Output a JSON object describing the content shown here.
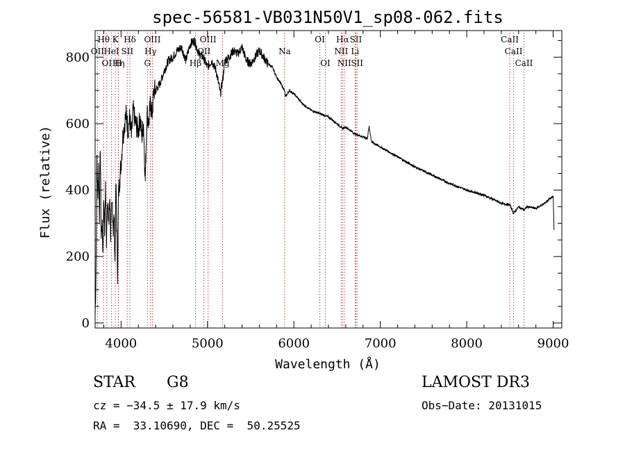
{
  "chart_data": {
    "type": "line",
    "title": "spec-56581-VB031N50V1_sp08-062.fits",
    "xlabel": "Wavelength (Å)",
    "ylabel": "Flux (relative)",
    "xlim": [
      3700,
      9100
    ],
    "ylim": [
      -15,
      880
    ],
    "xticks": [
      4000,
      5000,
      6000,
      7000,
      8000,
      9000
    ],
    "yticks": [
      0,
      200,
      400,
      600,
      800
    ],
    "series": [
      {
        "name": "spectrum",
        "x": [
          3700,
          3710,
          3720,
          3730,
          3740,
          3750,
          3760,
          3770,
          3780,
          3790,
          3800,
          3810,
          3820,
          3830,
          3840,
          3850,
          3860,
          3870,
          3880,
          3890,
          3900,
          3910,
          3920,
          3930,
          3940,
          3950,
          3960,
          3970,
          3980,
          3990,
          4000,
          4020,
          4040,
          4060,
          4080,
          4100,
          4120,
          4140,
          4160,
          4180,
          4200,
          4220,
          4240,
          4260,
          4280,
          4300,
          4320,
          4340,
          4360,
          4380,
          4400,
          4450,
          4500,
          4550,
          4600,
          4650,
          4700,
          4750,
          4800,
          4850,
          4900,
          4950,
          5000,
          5050,
          5100,
          5150,
          5180,
          5200,
          5250,
          5300,
          5350,
          5400,
          5450,
          5500,
          5550,
          5600,
          5650,
          5700,
          5750,
          5800,
          5850,
          5890,
          5900,
          5950,
          6000,
          6100,
          6200,
          6300,
          6400,
          6500,
          6563,
          6600,
          6700,
          6800,
          6850,
          6870,
          6900,
          7000,
          7200,
          7400,
          7600,
          7800,
          8000,
          8200,
          8400,
          8500,
          8542,
          8600,
          8662,
          8700,
          8800,
          8900,
          8950,
          9000,
          9010
        ],
        "y": [
          20,
          150,
          500,
          380,
          470,
          320,
          540,
          260,
          300,
          210,
          380,
          280,
          420,
          250,
          360,
          330,
          300,
          390,
          260,
          330,
          360,
          280,
          320,
          180,
          420,
          300,
          150,
          380,
          420,
          450,
          480,
          560,
          600,
          630,
          580,
          620,
          560,
          640,
          610,
          590,
          580,
          620,
          560,
          600,
          430,
          640,
          600,
          660,
          630,
          700,
          700,
          720,
          760,
          790,
          800,
          820,
          830,
          790,
          840,
          850,
          810,
          800,
          770,
          790,
          760,
          690,
          740,
          790,
          800,
          820,
          810,
          830,
          790,
          780,
          800,
          820,
          800,
          780,
          770,
          740,
          720,
          700,
          680,
          700,
          690,
          660,
          640,
          630,
          620,
          600,
          585,
          590,
          570,
          560,
          555,
          590,
          545,
          530,
          500,
          470,
          445,
          420,
          400,
          385,
          360,
          355,
          330,
          350,
          340,
          350,
          345,
          360,
          372,
          380,
          280
        ]
      }
    ],
    "lines": [
      {
        "name": "Hθ",
        "wavelength": 3798,
        "tier": 0
      },
      {
        "name": "K",
        "wavelength": 3934,
        "tier": 0
      },
      {
        "name": "Hδ",
        "wavelength": 4102,
        "tier": 0
      },
      {
        "name": "OIII",
        "wavelength": 4363,
        "tier": 0
      },
      {
        "name": "OIII",
        "wavelength": 5007,
        "tier": 0
      },
      {
        "name": "OII",
        "wavelength": 3727,
        "tier": 1
      },
      {
        "name": "HeI",
        "wavelength": 3889,
        "tier": 1
      },
      {
        "name": "SII",
        "wavelength": 4072,
        "tier": 1
      },
      {
        "name": "Hγ",
        "wavelength": 4341,
        "tier": 1
      },
      {
        "name": "OII",
        "wavelength": 4959,
        "tier": 1
      },
      {
        "name": "OI",
        "wavelength": 3835,
        "tier": 2
      },
      {
        "name": "Hη",
        "wavelength": 3970,
        "tier": 2
      },
      {
        "name": "H",
        "wavelength": 3968,
        "tier": 2
      },
      {
        "name": "G",
        "wavelength": 4305,
        "tier": 2
      },
      {
        "name": "Hβ",
        "wavelength": 4861,
        "tier": 2
      },
      {
        "name": "Mg",
        "wavelength": 5175,
        "tier": 2
      },
      {
        "name": "Na",
        "wavelength": 5893,
        "tier": 1
      },
      {
        "name": "OI",
        "wavelength": 6300,
        "tier": 0
      },
      {
        "name": "OI",
        "wavelength": 6364,
        "tier": 2
      },
      {
        "name": "Hα",
        "wavelength": 6563,
        "tier": 0
      },
      {
        "name": "SII",
        "wavelength": 6717,
        "tier": 0
      },
      {
        "name": "NII",
        "wavelength": 6548,
        "tier": 1
      },
      {
        "name": "Li",
        "wavelength": 6708,
        "tier": 1
      },
      {
        "name": "NII",
        "wavelength": 6583,
        "tier": 2
      },
      {
        "name": "SII",
        "wavelength": 6731,
        "tier": 2
      },
      {
        "name": "CaII",
        "wavelength": 8498,
        "tier": 0
      },
      {
        "name": "CaII",
        "wavelength": 8542,
        "tier": 1
      },
      {
        "name": "CaII",
        "wavelength": 8662,
        "tier": 2
      }
    ]
  },
  "info": {
    "object_class": "STAR",
    "subclass": "G8",
    "survey": "LAMOST DR3",
    "cz": "cz = −34.5 ± 17.9 km/s",
    "obs_date": "Obs−Date: 20131015",
    "coords": "RA =  33.10690, DEC =  50.25525"
  }
}
